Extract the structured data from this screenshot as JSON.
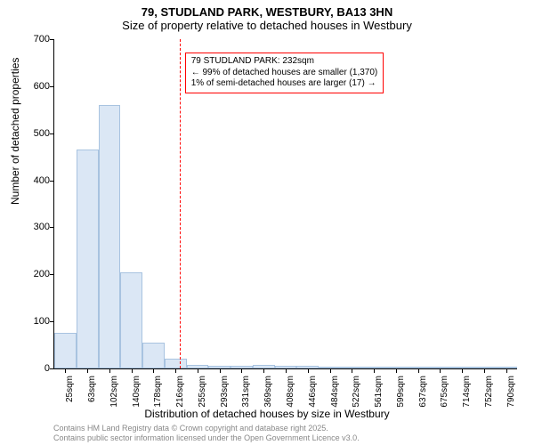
{
  "title": "79, STUDLAND PARK, WESTBURY, BA13 3HN",
  "subtitle": "Size of property relative to detached houses in Westbury",
  "ylabel": "Number of detached properties",
  "xlabel": "Distribution of detached houses by size in Westbury",
  "footer_line1": "Contains HM Land Registry data © Crown copyright and database right 2025.",
  "footer_line2": "Contains public sector information licensed under the Open Government Licence v3.0.",
  "annotation": {
    "line1": "79 STUDLAND PARK: 232sqm",
    "line2": "← 99% of detached houses are smaller (1,370)",
    "line3": "1% of semi-detached houses are larger (17) →"
  },
  "chart": {
    "type": "histogram",
    "ylim": [
      0,
      700
    ],
    "ytick_step": 100,
    "yticks": [
      0,
      100,
      200,
      300,
      400,
      500,
      600,
      700
    ],
    "xticks": [
      "25sqm",
      "63sqm",
      "102sqm",
      "140sqm",
      "178sqm",
      "216sqm",
      "255sqm",
      "293sqm",
      "331sqm",
      "369sqm",
      "408sqm",
      "446sqm",
      "484sqm",
      "522sqm",
      "561sqm",
      "599sqm",
      "637sqm",
      "675sqm",
      "714sqm",
      "752sqm",
      "790sqm"
    ],
    "bars": [
      75,
      465,
      560,
      205,
      55,
      20,
      8,
      6,
      6,
      8,
      5,
      6,
      3,
      2,
      1,
      1,
      1,
      2,
      0,
      0,
      1
    ],
    "bar_fill": "#dbe7f5",
    "bar_stroke": "#a8c3e0",
    "reference_value": 232,
    "x_min": 25,
    "x_max": 790,
    "reference_color": "#ff0000",
    "background_color": "#ffffff",
    "axis_color": "#000000",
    "title_fontsize": 13,
    "label_fontsize": 12,
    "tick_fontsize": 11
  }
}
